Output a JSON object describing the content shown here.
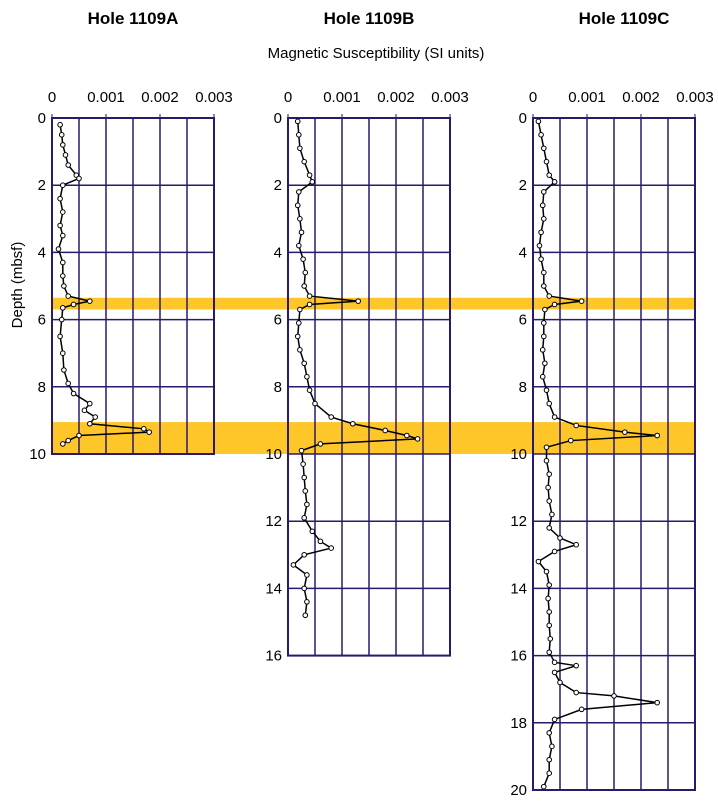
{
  "xlabel": "Magnetic Susceptibility (SI units)",
  "ylabel": "Depth (mbsf)",
  "highlight_bands": [
    [
      5.35,
      5.7
    ],
    [
      9.05,
      10
    ]
  ],
  "band_color": "#ffc629",
  "chart_data": [
    {
      "type": "line",
      "title": "Hole 1109A",
      "color": "#000000",
      "xlim": [
        0,
        0.003
      ],
      "xticks": [
        0,
        0.001,
        0.002,
        0.003
      ],
      "xgrid": [
        0.0005,
        0.001,
        0.0015,
        0.002,
        0.0025
      ],
      "ylim": [
        0,
        10
      ],
      "yticks": [
        0,
        2,
        4,
        6,
        8,
        10
      ],
      "depth": [
        0.2,
        0.5,
        0.8,
        1.1,
        1.4,
        1.7,
        1.8,
        2.0,
        2.4,
        2.8,
        3.2,
        3.5,
        3.9,
        4.3,
        4.7,
        5.0,
        5.3,
        5.45,
        5.55,
        5.65,
        6.0,
        6.5,
        7.0,
        7.5,
        7.9,
        8.2,
        8.5,
        8.7,
        8.9,
        9.1,
        9.25,
        9.35,
        9.45,
        9.6,
        9.7
      ],
      "values": [
        0.00015,
        0.00018,
        0.0002,
        0.00025,
        0.0003,
        0.00045,
        0.0005,
        0.0002,
        0.00015,
        0.0002,
        0.00015,
        0.0002,
        0.00012,
        0.0002,
        0.0002,
        0.00022,
        0.0003,
        0.0007,
        0.0004,
        0.0002,
        0.00018,
        0.00015,
        0.0002,
        0.00022,
        0.0003,
        0.0004,
        0.0007,
        0.0006,
        0.0008,
        0.0007,
        0.0017,
        0.0018,
        0.0005,
        0.0003,
        0.0002
      ]
    },
    {
      "type": "line",
      "title": "Hole 1109B",
      "color": "#000000",
      "xlim": [
        0,
        0.003
      ],
      "xticks": [
        0,
        0.001,
        0.002,
        0.003
      ],
      "xgrid": [
        0.0005,
        0.001,
        0.0015,
        0.002,
        0.0025
      ],
      "ylim": [
        0,
        16
      ],
      "yticks": [
        0,
        2,
        4,
        6,
        8,
        10,
        12,
        14,
        16
      ],
      "depth": [
        0.1,
        0.5,
        0.9,
        1.3,
        1.7,
        1.9,
        2.2,
        2.6,
        3.0,
        3.4,
        3.8,
        4.2,
        4.6,
        5.0,
        5.3,
        5.45,
        5.55,
        5.7,
        6.1,
        6.5,
        6.9,
        7.3,
        7.7,
        8.1,
        8.5,
        8.9,
        9.1,
        9.3,
        9.45,
        9.55,
        9.7,
        9.9,
        10.3,
        10.7,
        11.1,
        11.5,
        11.9,
        12.3,
        12.6,
        12.8,
        13.0,
        13.3,
        13.6,
        14.0,
        14.4,
        14.8
      ],
      "values": [
        0.00018,
        0.0002,
        0.00022,
        0.0003,
        0.0004,
        0.00045,
        0.0002,
        0.00018,
        0.00022,
        0.00025,
        0.0002,
        0.00028,
        0.00032,
        0.0003,
        0.0004,
        0.0013,
        0.0004,
        0.00022,
        0.0002,
        0.00018,
        0.00022,
        0.0003,
        0.00035,
        0.0004,
        0.0005,
        0.0008,
        0.0012,
        0.0018,
        0.0022,
        0.0024,
        0.0006,
        0.00025,
        0.00028,
        0.0003,
        0.00032,
        0.00035,
        0.0003,
        0.00045,
        0.0006,
        0.0008,
        0.0003,
        0.0001,
        0.00035,
        0.0003,
        0.00035,
        0.00032
      ]
    },
    {
      "type": "line",
      "title": "Hole 1109C",
      "color": "#000000",
      "xlim": [
        0,
        0.003
      ],
      "xticks": [
        0,
        0.001,
        0.002,
        0.003
      ],
      "xgrid": [
        0.0005,
        0.001,
        0.0015,
        0.002,
        0.0025
      ],
      "ylim": [
        0,
        20
      ],
      "yticks": [
        0,
        2,
        4,
        6,
        8,
        10,
        12,
        14,
        16,
        18,
        20
      ],
      "depth": [
        0.1,
        0.5,
        0.9,
        1.3,
        1.7,
        1.9,
        2.2,
        2.6,
        3.0,
        3.4,
        3.8,
        4.2,
        4.6,
        5.0,
        5.3,
        5.45,
        5.55,
        5.7,
        6.1,
        6.5,
        6.9,
        7.3,
        7.7,
        8.1,
        8.5,
        8.9,
        9.15,
        9.35,
        9.45,
        9.6,
        9.8,
        10.2,
        10.6,
        11.0,
        11.4,
        11.8,
        12.2,
        12.5,
        12.7,
        12.9,
        13.2,
        13.5,
        13.9,
        14.3,
        14.7,
        15.1,
        15.5,
        15.9,
        16.2,
        16.3,
        16.5,
        16.8,
        17.1,
        17.2,
        17.4,
        17.6,
        17.9,
        18.3,
        18.7,
        19.1,
        19.5,
        19.9
      ],
      "values": [
        0.0001,
        0.00015,
        0.0002,
        0.00025,
        0.0003,
        0.0004,
        0.0002,
        0.00018,
        0.0002,
        0.00015,
        0.00012,
        0.00015,
        0.0002,
        0.0002,
        0.0003,
        0.0009,
        0.0004,
        0.00022,
        0.0002,
        0.0002,
        0.00018,
        0.00022,
        0.00018,
        0.00025,
        0.0003,
        0.0004,
        0.0008,
        0.0017,
        0.0023,
        0.0007,
        0.00025,
        0.00025,
        0.0003,
        0.00028,
        0.0003,
        0.00035,
        0.0003,
        0.0005,
        0.0008,
        0.0004,
        0.0001,
        0.00025,
        0.0003,
        0.00028,
        0.0003,
        0.0003,
        0.00032,
        0.0003,
        0.0004,
        0.0008,
        0.0004,
        0.0005,
        0.0008,
        0.0015,
        0.0023,
        0.0009,
        0.0004,
        0.0003,
        0.00035,
        0.0003,
        0.0003,
        0.0002
      ]
    }
  ]
}
